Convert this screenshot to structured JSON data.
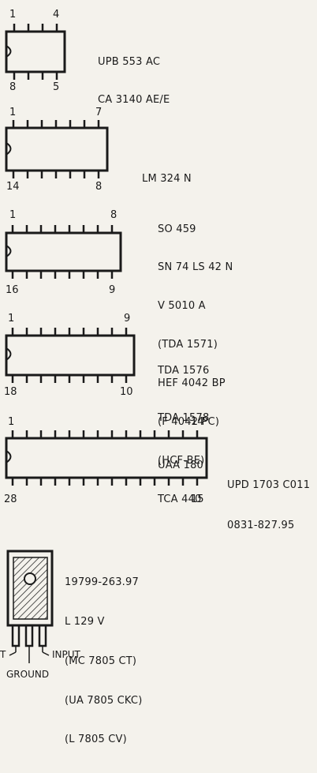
{
  "packages": [
    {
      "pin_first_top": "1",
      "pin_last_top": "4",
      "pin_first_bottom": "8",
      "pin_last_bottom": "5",
      "labels": [
        "UPB 553 AC",
        "CA 3140 AE/E"
      ]
    },
    {
      "pin_first_top": "1",
      "pin_last_top": "7",
      "pin_first_bottom": "14",
      "pin_last_bottom": "8",
      "labels": [
        "LM 324 N"
      ]
    },
    {
      "pin_first_top": "1",
      "pin_last_top": "8",
      "pin_first_bottom": "16",
      "pin_last_bottom": "9",
      "labels": [
        "SO 459",
        "SN 74 LS 42 N",
        "V 5010 A",
        "(TDA 1571)",
        "HEF 4042 BP",
        "(F 4042 PC)",
        "(HCF-BE)",
        "TCA 440"
      ]
    },
    {
      "pin_first_top": "1",
      "pin_last_top": "9",
      "pin_first_bottom": "18",
      "pin_last_bottom": "10",
      "labels": [
        "TDA 1576",
        "TDA 1578",
        "UAA 180"
      ]
    },
    {
      "pin_first_top": "1",
      "pin_last_top": "14",
      "pin_first_bottom": "28",
      "pin_last_bottom": "15",
      "labels": [
        "UPD 1703 C011",
        "0831-827.95"
      ]
    }
  ],
  "regulator": {
    "labels": [
      "19799-263.97",
      "L 129 V",
      "(MC 7805 CT)",
      "(UA 7805 CKC)",
      "(L 7805 CV)"
    ],
    "pin_input": "INPUT",
    "pin_ground": "GROUND",
    "pin_output": "T"
  }
}
